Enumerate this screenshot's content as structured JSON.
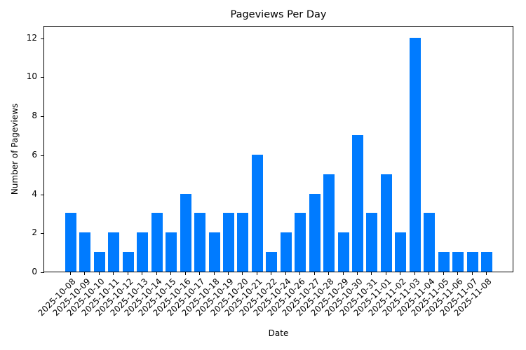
{
  "chart_data": {
    "type": "bar",
    "title": "Pageviews Per Day",
    "xlabel": "Date",
    "ylabel": "Number of Pageviews",
    "categories": [
      "2025-10-08",
      "2025-10-09",
      "2025-10-10",
      "2025-10-11",
      "2025-10-12",
      "2025-10-13",
      "2025-10-14",
      "2025-10-15",
      "2025-10-16",
      "2025-10-17",
      "2025-10-18",
      "2025-10-19",
      "2025-10-20",
      "2025-10-21",
      "2025-10-22",
      "2025-10-24",
      "2025-10-26",
      "2025-10-27",
      "2025-10-28",
      "2025-10-29",
      "2025-10-30",
      "2025-10-31",
      "2025-11-01",
      "2025-11-02",
      "2025-11-03",
      "2025-11-04",
      "2025-11-05",
      "2025-11-06",
      "2025-11-07",
      "2025-11-08"
    ],
    "values": [
      3,
      2,
      1,
      2,
      1,
      2,
      3,
      2,
      4,
      3,
      2,
      3,
      3,
      6,
      1,
      2,
      3,
      4,
      5,
      2,
      7,
      3,
      5,
      2,
      12,
      3,
      1,
      1,
      1,
      1
    ],
    "yticks": [
      0,
      2,
      4,
      6,
      8,
      10,
      12
    ],
    "ylim": [
      0,
      12.6
    ],
    "grid": false,
    "legend": null,
    "bar_color": "#007bff"
  }
}
